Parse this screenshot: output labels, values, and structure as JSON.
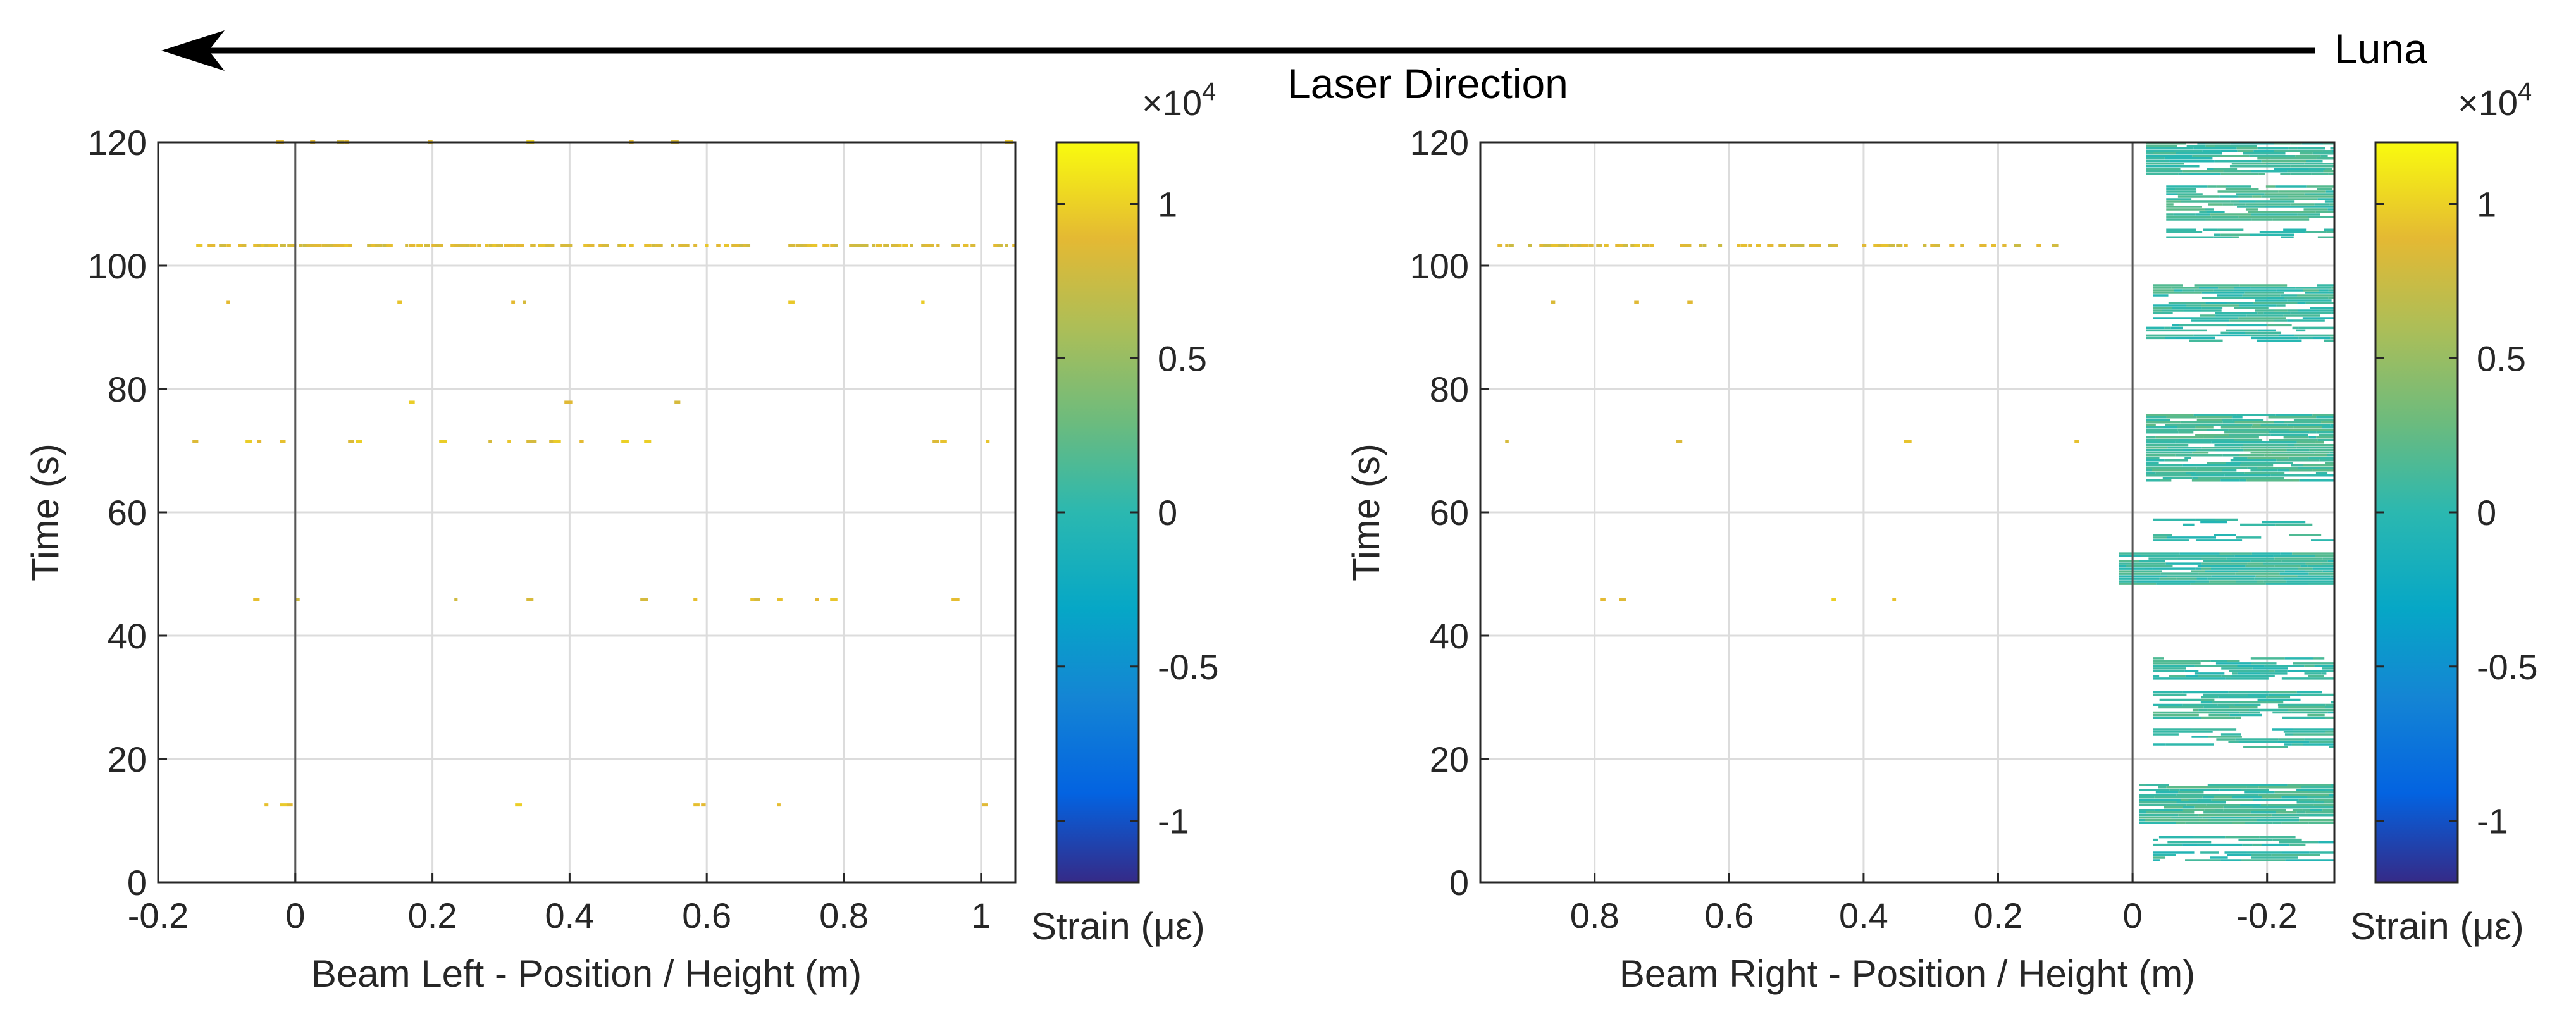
{
  "header": {
    "laser_label": "Laser Direction",
    "source_label": "Luna"
  },
  "chart_data": [
    {
      "type": "heatmap",
      "name": "beam-left",
      "xlabel": "Beam Left - Position / Height (m)",
      "ylabel": "Time (s)",
      "xlim": [
        -0.2,
        1.05
      ],
      "ylim": [
        0,
        120
      ],
      "x_reversed": false,
      "xticks": [
        -0.2,
        0,
        0.2,
        0.4,
        0.6,
        0.8,
        1
      ],
      "xtick_labels": [
        "-0.2",
        "0",
        "0.2",
        "0.4",
        "0.6",
        "0.8",
        "1"
      ],
      "yticks": [
        0,
        20,
        40,
        60,
        80,
        100,
        120
      ],
      "ytick_labels": [
        "0",
        "20",
        "40",
        "60",
        "80",
        "100",
        "120"
      ],
      "grid": true,
      "zero_line_x": 0,
      "colorbar": {
        "label": "Strain (με)",
        "exponent_label": "×10",
        "exponent": "4",
        "clim": [
          -1.2,
          1.2
        ],
        "ticks": [
          -1,
          -0.5,
          0,
          0.5,
          1
        ],
        "tick_labels": [
          "-1",
          "-0.5",
          "0",
          "0.5",
          "1"
        ]
      },
      "blocks": [],
      "speckle_bands": [
        {
          "t": 103.2,
          "x0": -0.15,
          "x1": 1.05,
          "value": 0.85,
          "density": 0.55
        },
        {
          "t": 120.0,
          "x0": -0.15,
          "x1": 1.05,
          "value": 0.9,
          "density": 0.04
        },
        {
          "t": 94.0,
          "x0": -0.15,
          "x1": 1.05,
          "value": 0.9,
          "density": 0.02
        },
        {
          "t": 77.8,
          "x0": -0.15,
          "x1": 1.05,
          "value": 0.9,
          "density": 0.02
        },
        {
          "t": 71.4,
          "x0": -0.15,
          "x1": 1.05,
          "value": 0.9,
          "density": 0.05
        },
        {
          "t": 45.8,
          "x0": -0.15,
          "x1": 1.05,
          "value": 0.85,
          "density": 0.06
        },
        {
          "t": 12.5,
          "x0": -0.15,
          "x1": 1.05,
          "value": 0.9,
          "density": 0.02
        }
      ]
    },
    {
      "type": "heatmap",
      "name": "beam-right",
      "xlabel": "Beam Right - Position / Height (m)",
      "ylabel": "Time (s)",
      "xlim": [
        0.97,
        -0.3
      ],
      "ylim": [
        0,
        120
      ],
      "x_reversed": true,
      "xticks": [
        0.8,
        0.6,
        0.4,
        0.2,
        0,
        -0.2
      ],
      "xtick_labels": [
        "0.8",
        "0.6",
        "0.4",
        "0.2",
        "0",
        "-0.2"
      ],
      "yticks": [
        0,
        20,
        40,
        60,
        80,
        100,
        120
      ],
      "ytick_labels": [
        "0",
        "20",
        "40",
        "60",
        "80",
        "100",
        "120"
      ],
      "grid": true,
      "zero_line_x": 0,
      "colorbar": {
        "label": "Strain (με)",
        "exponent_label": "×10",
        "exponent": "4",
        "clim": [
          -1.2,
          1.2
        ],
        "ticks": [
          -1,
          -0.5,
          0,
          0.5,
          1
        ],
        "tick_labels": [
          "-1",
          "-0.5",
          "0",
          "0.5",
          "1"
        ]
      },
      "blocks": [
        {
          "t0": 3.5,
          "t1": 5.0,
          "x0": -0.03,
          "x1": -0.3,
          "value": 0.05,
          "density": 0.55
        },
        {
          "t0": 6.0,
          "t1": 7.5,
          "x0": -0.03,
          "x1": -0.3,
          "value": 0.05,
          "density": 0.55
        },
        {
          "t0": 9.5,
          "t1": 16.0,
          "x0": -0.01,
          "x1": -0.3,
          "value": 0.1,
          "density": 0.92
        },
        {
          "t0": 22.0,
          "t1": 25.0,
          "x0": -0.03,
          "x1": -0.3,
          "value": 0.05,
          "density": 0.6
        },
        {
          "t0": 26.5,
          "t1": 31.0,
          "x0": -0.03,
          "x1": -0.3,
          "value": 0.1,
          "density": 0.7
        },
        {
          "t0": 33.0,
          "t1": 36.5,
          "x0": -0.03,
          "x1": -0.3,
          "value": 0.05,
          "density": 0.7
        },
        {
          "t0": 48.5,
          "t1": 53.5,
          "x0": 0.02,
          "x1": -0.3,
          "value": 0.08,
          "density": 0.92
        },
        {
          "t0": 55.5,
          "t1": 56.5,
          "x0": -0.03,
          "x1": -0.3,
          "value": 0.05,
          "density": 0.45
        },
        {
          "t0": 58.0,
          "t1": 59.0,
          "x0": -0.03,
          "x1": -0.3,
          "value": 0.05,
          "density": 0.45
        },
        {
          "t0": 65.0,
          "t1": 76.0,
          "x0": -0.02,
          "x1": -0.3,
          "value": 0.12,
          "density": 0.88
        },
        {
          "t0": 88.0,
          "t1": 90.5,
          "x0": -0.02,
          "x1": -0.3,
          "value": 0.05,
          "density": 0.65
        },
        {
          "t0": 91.0,
          "t1": 97.0,
          "x0": -0.03,
          "x1": -0.3,
          "value": 0.08,
          "density": 0.75
        },
        {
          "t0": 104.5,
          "t1": 106.0,
          "x0": -0.05,
          "x1": -0.3,
          "value": 0.05,
          "density": 0.5
        },
        {
          "t0": 107.5,
          "t1": 113.0,
          "x0": -0.05,
          "x1": -0.3,
          "value": 0.12,
          "density": 0.82
        },
        {
          "t0": 115.0,
          "t1": 120.0,
          "x0": -0.02,
          "x1": -0.3,
          "value": 0.08,
          "density": 0.8
        }
      ],
      "speckle_bands": [
        {
          "t": 103.2,
          "x0": 0.95,
          "x1": 0.12,
          "value": 0.85,
          "density": 0.45
        },
        {
          "t": 71.4,
          "x0": 0.95,
          "x1": 0.05,
          "value": 0.9,
          "density": 0.02
        },
        {
          "t": 45.8,
          "x0": 0.95,
          "x1": 0.05,
          "value": 0.9,
          "density": 0.02
        },
        {
          "t": 94.0,
          "x0": 0.95,
          "x1": 0.05,
          "value": 0.9,
          "density": 0.01
        }
      ]
    }
  ]
}
